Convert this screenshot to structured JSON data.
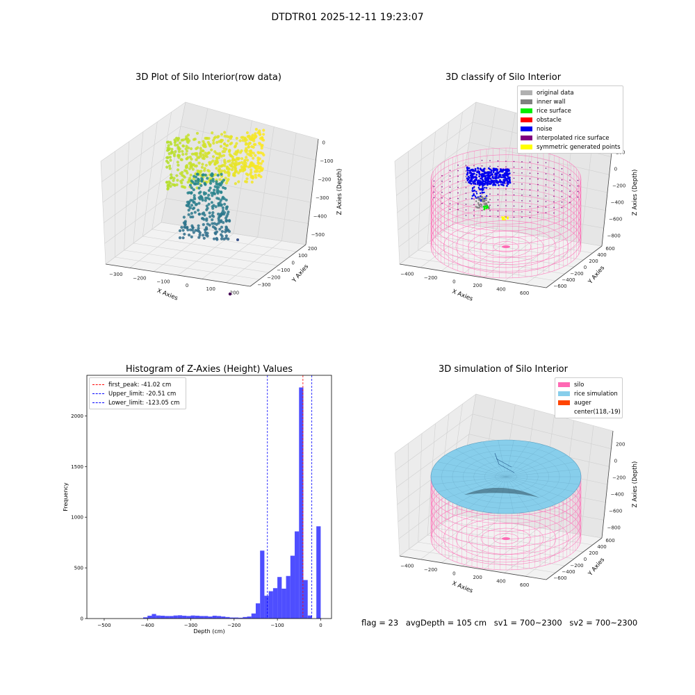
{
  "suptitle": "DTDTR01 2025-12-11 19:23:07",
  "footer": {
    "flag": "flag = 23",
    "avg_depth": "avgDepth = 105 cm",
    "sv1": "sv1 = 700~2300",
    "sv2": "sv2 = 700~2300"
  },
  "colors": {
    "original": "#b0b0b0",
    "inner_wall": "#808080",
    "rice_surface": "#00ee00",
    "obstacle": "#ff0000",
    "noise": "#0000ee",
    "interpolated": "#800080",
    "symmetric": "#ffff00",
    "silo": "#ff69b4",
    "rice_sim": "#87ceeb",
    "auger": "#ff4500",
    "hist_bar": "#4444ff"
  },
  "chart_data": [
    {
      "type": "scatter3d",
      "title": "3D Plot of Silo Interior(row data)",
      "xlabel": "X Axies",
      "ylabel": "Y Axies",
      "zlabel": "Z Axies (Depth)",
      "xticks": [
        "−300",
        "−200",
        "−100",
        "0",
        "100",
        "200"
      ],
      "yticks": [
        "−300",
        "−200",
        "−100",
        "0",
        "100",
        "200"
      ],
      "zticks": [
        "0",
        "−100",
        "−200",
        "−300",
        "−400",
        "−500"
      ]
    },
    {
      "type": "scatter3d",
      "title": "3D classify of Silo Interior",
      "xlabel": "X Axies",
      "ylabel": "Y Axies",
      "zlabel": "Z Axies (Depth)",
      "xticks": [
        "−400",
        "−200",
        "0",
        "200",
        "400",
        "600"
      ],
      "yticks": [
        "−600",
        "−400",
        "−200",
        "0",
        "200",
        "400",
        "600"
      ],
      "zticks": [
        "200",
        "0",
        "−200",
        "−400",
        "−600",
        "−800"
      ],
      "legend": [
        "original data",
        "inner wall",
        "rice surface",
        "obstacle",
        "noise",
        "interpolated rice surface",
        "symmetric generated points"
      ],
      "legend_position": "top-right"
    },
    {
      "type": "bar",
      "title": "Histogram of Z-Axies (Height) Values",
      "xlabel": "Depth (cm)",
      "ylabel": "Frequency",
      "xlim": [
        -540,
        25
      ],
      "ylim": [
        0,
        2400
      ],
      "xticks": [
        -500,
        -400,
        -300,
        -200,
        -100,
        0
      ],
      "yticks": [
        0,
        500,
        1000,
        1500,
        2000
      ],
      "bin_width": 10,
      "bins": [
        {
          "x0": -410,
          "v": 12
        },
        {
          "x0": -400,
          "v": 28
        },
        {
          "x0": -390,
          "v": 45
        },
        {
          "x0": -380,
          "v": 30
        },
        {
          "x0": -370,
          "v": 28
        },
        {
          "x0": -360,
          "v": 25
        },
        {
          "x0": -350,
          "v": 25
        },
        {
          "x0": -340,
          "v": 30
        },
        {
          "x0": -330,
          "v": 32
        },
        {
          "x0": -320,
          "v": 28
        },
        {
          "x0": -310,
          "v": 25
        },
        {
          "x0": -300,
          "v": 30
        },
        {
          "x0": -290,
          "v": 28
        },
        {
          "x0": -280,
          "v": 25
        },
        {
          "x0": -270,
          "v": 25
        },
        {
          "x0": -260,
          "v": 20
        },
        {
          "x0": -250,
          "v": 28
        },
        {
          "x0": -240,
          "v": 25
        },
        {
          "x0": -230,
          "v": 20
        },
        {
          "x0": -220,
          "v": 15
        },
        {
          "x0": -210,
          "v": 10
        },
        {
          "x0": -200,
          "v": 10
        },
        {
          "x0": -190,
          "v": 8
        },
        {
          "x0": -180,
          "v": 15
        },
        {
          "x0": -170,
          "v": 20
        },
        {
          "x0": -160,
          "v": 50
        },
        {
          "x0": -150,
          "v": 150
        },
        {
          "x0": -140,
          "v": 670
        },
        {
          "x0": -130,
          "v": 225
        },
        {
          "x0": -120,
          "v": 270
        },
        {
          "x0": -110,
          "v": 300
        },
        {
          "x0": -100,
          "v": 410
        },
        {
          "x0": -90,
          "v": 295
        },
        {
          "x0": -80,
          "v": 420
        },
        {
          "x0": -70,
          "v": 620
        },
        {
          "x0": -60,
          "v": 860
        },
        {
          "x0": -50,
          "v": 2280
        },
        {
          "x0": -40,
          "v": 380
        },
        {
          "x0": -30,
          "v": 30
        },
        {
          "x0": -10,
          "v": 910
        }
      ],
      "lines": [
        {
          "label": "first_peak: -41.02 cm",
          "x": -41.02,
          "color": "#ff0000"
        },
        {
          "label": "Upper_limit: -20.51 cm",
          "x": -20.51,
          "color": "#0000ff"
        },
        {
          "label": "Lower_limit: -123.05 cm",
          "x": -123.05,
          "color": "#0000ff"
        }
      ],
      "legend_position": "upper-left"
    },
    {
      "type": "surface3d",
      "title": "3D simulation of Silo Interior",
      "xlabel": "X Axies",
      "ylabel": "Y Axies",
      "zlabel": "Z Axies (Depth)",
      "xticks": [
        "−400",
        "−200",
        "0",
        "200",
        "400",
        "600"
      ],
      "yticks": [
        "−600",
        "−400",
        "−200",
        "0",
        "200",
        "400",
        "600"
      ],
      "zticks": [
        "200",
        "0",
        "−200",
        "−400",
        "−600",
        "−800"
      ],
      "legend": [
        "silo",
        "rice simulation",
        "auger",
        "center(118,-19)"
      ],
      "legend_position": "top-right"
    }
  ]
}
